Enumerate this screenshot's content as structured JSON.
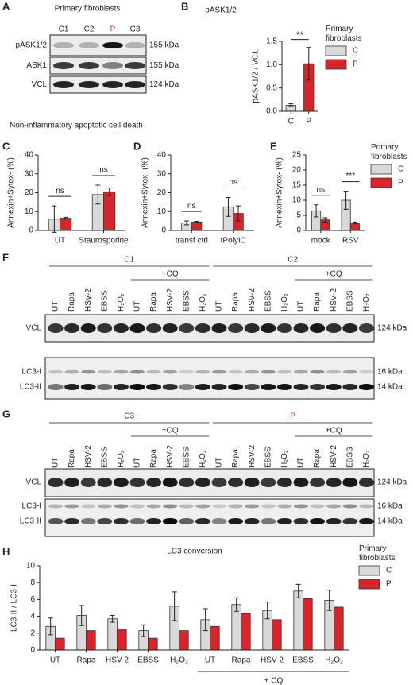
{
  "panels": {
    "letters": [
      "A",
      "B",
      "C",
      "D",
      "E",
      "F",
      "G",
      "H"
    ],
    "apoptosis_title": "Non-inflammatory apoptotic cell death"
  },
  "blots": {
    "A": {
      "title": "Primary fibroblasts",
      "lanes": [
        "C1",
        "C2",
        "P",
        "C3"
      ],
      "rows": [
        "pASK1/2",
        "ASK1",
        "VCL"
      ],
      "sizes": [
        "155 kDa",
        "155 kDa",
        "124 kDa"
      ]
    },
    "F": {
      "groups": [
        "C1",
        "C2"
      ],
      "cq": [
        "+CQ",
        "+CQ"
      ],
      "lanes": [
        "UT",
        "Rapa",
        "HSV-2",
        "EBSS",
        "H₂O₂",
        "UT",
        "Rapa",
        "HSV-2",
        "EBSS",
        "H₂O₂",
        "UT",
        "Rapa",
        "HSV-2",
        "EBSS",
        "H₂O₂",
        "UT",
        "Rapa",
        "HSV-2",
        "EBSS",
        "H₂O₂"
      ],
      "rows": [
        "VCL",
        "LC3-I",
        "LC3-II"
      ],
      "sizes": [
        "124 kDa",
        "16 kDa",
        "14 kDa"
      ]
    },
    "G": {
      "groups": [
        "C3",
        "P"
      ],
      "cq": [
        "+CQ",
        "+CQ"
      ],
      "lanes": [
        "UT",
        "Rapa",
        "HSV-2",
        "EBSS",
        "H₂O₂",
        "UT",
        "Rapa",
        "HSV-2",
        "EBSS",
        "H₂O₂",
        "UT",
        "Rapa",
        "HSV-2",
        "EBSS",
        "H₂O₂",
        "UT",
        "Rapa",
        "HSV-2",
        "EBSS",
        "H₂O₂"
      ],
      "rows": [
        "VCL",
        "LC3-I",
        "LC3-II"
      ],
      "sizes": [
        "124 kDa",
        "16 kDa",
        "14 kDa"
      ]
    }
  },
  "chart_data": [
    {
      "type": "bar",
      "title": "pASK1/2",
      "ylabel": "pASK1/2 / VCL",
      "categories": [
        "C",
        "P"
      ],
      "values": [
        0.13,
        1.02
      ],
      "errors": [
        0.03,
        0.35
      ],
      "colors": [
        "#d9d9d9",
        "#d7262b"
      ],
      "ylim": [
        0,
        1.5
      ],
      "yticks": [
        {
          "value": 0,
          "label": "0.0"
        },
        {
          "value": 0.5,
          "label": "0.5"
        },
        {
          "value": 1,
          "label": "1.0"
        },
        {
          "value": 1.5,
          "label": "1.5"
        }
      ],
      "significance": "**",
      "legend_title": "Primary fibroblasts"
    },
    {
      "type": "grouped_bar",
      "ylabel": "Annexin+Sytox- (%)",
      "categories": [
        "UT",
        "Staurosporine"
      ],
      "series": [
        {
          "color": "#d9d9d9",
          "values": [
            6,
            19
          ],
          "errors": [
            7,
            5
          ]
        },
        {
          "color": "#d7262b",
          "values": [
            6.5,
            20.5
          ],
          "errors": [
            0.5,
            2
          ]
        }
      ],
      "ylim": [
        0,
        40
      ],
      "yticks": [
        0,
        10,
        20,
        30,
        40
      ],
      "significance": [
        "ns",
        "ns"
      ]
    },
    {
      "type": "grouped_bar",
      "ylabel": "Annexin+Sytox- (%)",
      "categories": [
        "transf ctrl",
        "tPolyIC"
      ],
      "series": [
        {
          "color": "#d9d9d9",
          "values": [
            4,
            12.5
          ],
          "errors": [
            1,
            5
          ]
        },
        {
          "color": "#d7262b",
          "values": [
            4.5,
            9
          ],
          "errors": [
            0.3,
            4
          ]
        }
      ],
      "ylim": [
        0,
        40
      ],
      "yticks": [
        0,
        10,
        20,
        30,
        40
      ],
      "significance": [
        "ns",
        "ns"
      ]
    },
    {
      "type": "grouped_bar",
      "ylabel": "Annexin+Sytox- (%)",
      "categories": [
        "mock",
        "RSV"
      ],
      "series": [
        {
          "name": "C",
          "color": "#d9d9d9",
          "values": [
            6.5,
            10
          ],
          "errors": [
            2,
            3
          ]
        },
        {
          "name": "P",
          "color": "#d7262b",
          "values": [
            3.5,
            2.5
          ],
          "errors": [
            0.7,
            0.3
          ]
        }
      ],
      "ylim": [
        0,
        25
      ],
      "yticks": [
        0,
        5,
        10,
        15,
        20,
        25
      ],
      "significance": [
        "ns",
        "***"
      ],
      "legend_title": "Primary fibroblasts"
    },
    {
      "type": "grouped_bar",
      "title": "LC3 conversion",
      "ylabel": "LC3-II / LC3-I",
      "categories": [
        "UT",
        "Rapa",
        "HSV-2",
        "EBSS",
        "H₂O₂",
        "UT",
        "Rapa",
        "HSV-2",
        "EBSS",
        "H₂O₂"
      ],
      "series": [
        {
          "name": "C",
          "color": "#d9d9d9",
          "values": [
            2.8,
            4.1,
            3.7,
            2.3,
            5.2,
            3.6,
            5.4,
            4.7,
            7.0,
            5.9
          ],
          "errors": [
            1.0,
            1.2,
            0.4,
            0.7,
            1.7,
            1.3,
            0.8,
            1.0,
            0.8,
            1.2
          ]
        },
        {
          "name": "P",
          "color": "#d7262b",
          "values": [
            1.4,
            2.3,
            2.4,
            1.4,
            2.3,
            2.8,
            4.3,
            3.6,
            6.1,
            5.1
          ]
        }
      ],
      "ylim": [
        0,
        10
      ],
      "yticks": [
        0,
        2,
        4,
        6,
        8,
        10
      ],
      "group_label": "+ CQ",
      "legend_title": "Primary fibroblasts"
    }
  ]
}
